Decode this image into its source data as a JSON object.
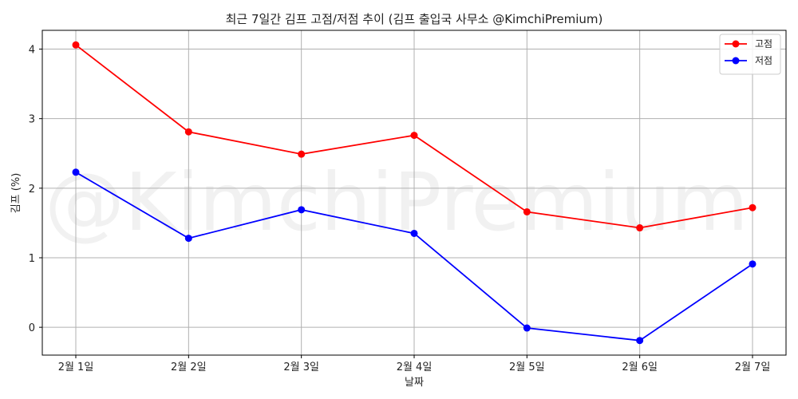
{
  "chart_data": {
    "type": "line",
    "title": "최근 7일간 김프 고점/저점 추이 (김프 출입국 사무소 @KimchiPremium)",
    "xlabel": "날짜",
    "ylabel": "김프 (%)",
    "categories": [
      "2월 1일",
      "2월 2일",
      "2월 3일",
      "2월 4일",
      "2월 5일",
      "2월 6일",
      "2월 7일"
    ],
    "ylim": [
      -0.4,
      4.27
    ],
    "yticks": [
      0,
      1,
      2,
      3,
      4
    ],
    "grid": true,
    "legend_position": "top-right",
    "watermark": "@KimchiPremium",
    "series": [
      {
        "name": "고점",
        "color": "#ff0000",
        "values": [
          4.06,
          2.81,
          2.49,
          2.76,
          1.66,
          1.43,
          1.72
        ]
      },
      {
        "name": "저점",
        "color": "#0000ff",
        "values": [
          2.23,
          1.28,
          1.69,
          1.35,
          -0.01,
          -0.19,
          0.91
        ]
      }
    ]
  }
}
